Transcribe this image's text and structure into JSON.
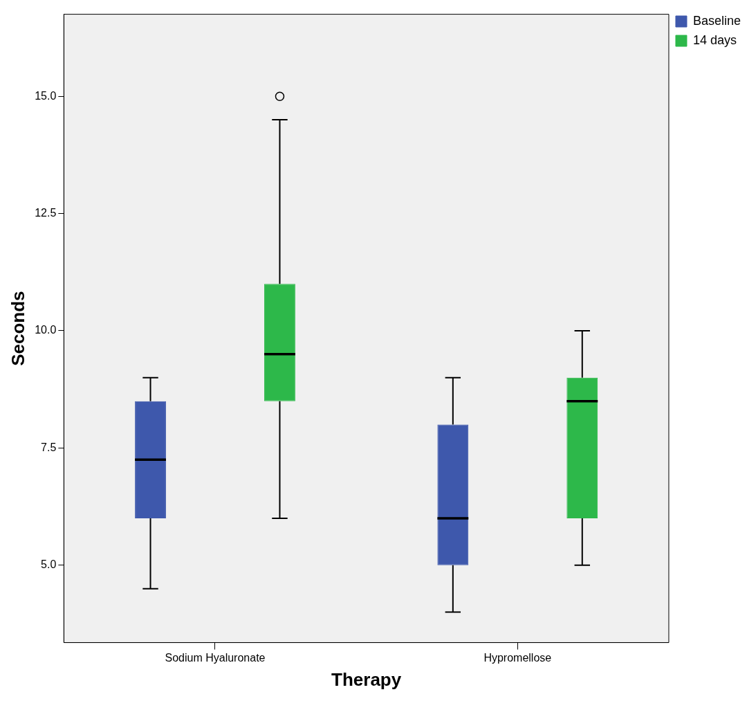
{
  "chart_data": {
    "type": "box",
    "xlabel": "Therapy",
    "ylabel": "Seconds",
    "categories": [
      "Sodium Hyaluronate",
      "Hypromellose"
    ],
    "series": [
      {
        "name": "Baseline",
        "color": "#3e58ac",
        "boxes": [
          {
            "low": 4.5,
            "q1": 6.0,
            "median": 7.25,
            "q3": 8.5,
            "high": 9.0
          },
          {
            "low": 4.0,
            "q1": 5.0,
            "median": 6.0,
            "q3": 8.0,
            "high": 9.0
          }
        ]
      },
      {
        "name": "14 days",
        "color": "#2db84a",
        "boxes": [
          {
            "low": 6.0,
            "q1": 8.5,
            "median": 9.5,
            "q3": 11.0,
            "high": 14.5,
            "outliers": [
              15.0
            ]
          },
          {
            "low": 5.0,
            "q1": 6.0,
            "median": 8.5,
            "q3": 9.0,
            "high": 10.0
          }
        ]
      }
    ],
    "ylim": [
      3.35,
      16.75
    ],
    "yticks": [
      {
        "value": 5,
        "label": "5.0"
      },
      {
        "value": 7.5,
        "label": "7.5"
      },
      {
        "value": 10,
        "label": "10.0"
      },
      {
        "value": 12.5,
        "label": "12.5"
      },
      {
        "value": 15,
        "label": "15.0"
      }
    ],
    "grid": false,
    "legend": "top right"
  }
}
